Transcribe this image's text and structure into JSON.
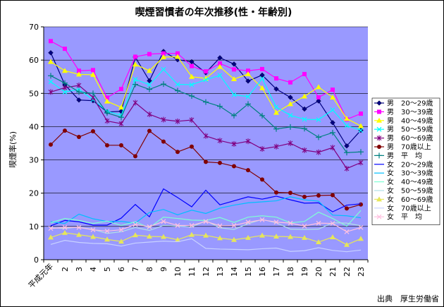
{
  "chart_data": {
    "type": "line",
    "title": "喫煙習慣者の年次推移(性・年齢別)",
    "ylabel": "喫煙率(%)",
    "xlabel": "",
    "source": "出典　厚生労働省",
    "ylim": [
      0,
      70
    ],
    "yticks": [
      0,
      10,
      20,
      30,
      40,
      50,
      60,
      70
    ],
    "categories": [
      "平成元年",
      "2",
      "3",
      "4",
      "5",
      "6",
      "7",
      "8",
      "9",
      "10",
      "11",
      "12",
      "13",
      "14",
      "15",
      "16",
      "17",
      "18",
      "19",
      "20",
      "21",
      "22",
      "23"
    ],
    "grid": "horizontal",
    "legend_position": "right",
    "series": [
      {
        "name": "男　20～29歳",
        "color": "#000080",
        "marker": "diamond",
        "dash": "",
        "values": [
          62.2,
          52.6,
          48.0,
          47.8,
          44.4,
          44.6,
          60.9,
          53.8,
          62.6,
          60.1,
          59.5,
          56.2,
          60.7,
          58.8,
          53.7,
          55.5,
          51.3,
          48.8,
          45.3,
          47.7,
          41.2,
          34.2,
          38.9
        ]
      },
      {
        "name": "男　30～39歳",
        "color": "#ff00ff",
        "marker": "square",
        "dash": "",
        "values": [
          65.7,
          63.4,
          56.8,
          57.0,
          48.7,
          51.3,
          61.0,
          61.8,
          62.0,
          62.0,
          58.2,
          56.6,
          59.0,
          57.2,
          56.8,
          57.3,
          54.5,
          53.3,
          55.8,
          48.8,
          51.1,
          42.2,
          43.9
        ]
      },
      {
        "name": "男　40～49歳",
        "color": "#ffff00",
        "marker": "triangle",
        "dash": "",
        "values": [
          59.5,
          56.8,
          55.7,
          55.6,
          47.6,
          45.8,
          58.7,
          56.8,
          60.9,
          61.0,
          55.0,
          54.5,
          58.0,
          54.3,
          55.8,
          51.6,
          44.2,
          46.8,
          49.1,
          51.9,
          48.8,
          42.4,
          40.2
        ]
      },
      {
        "name": "男　50～59歳",
        "color": "#00ffff",
        "marker": "x",
        "dash": "",
        "values": [
          53.5,
          50.4,
          51.2,
          48.1,
          44.6,
          43.4,
          54.2,
          52.6,
          57.2,
          52.7,
          52.6,
          54.1,
          55.4,
          49.6,
          49.0,
          54.4,
          45.9,
          43.4,
          42.2,
          42.1,
          45.0,
          40.3,
          38.9
        ]
      },
      {
        "name": "男　60～69歳",
        "color": "#800080",
        "marker": "star",
        "dash": "",
        "values": [
          50.4,
          51.7,
          52.4,
          48.8,
          41.7,
          40.9,
          47.2,
          43.7,
          42.1,
          41.6,
          42.0,
          37.2,
          35.8,
          34.8,
          35.6,
          33.3,
          34.0,
          35.0,
          32.9,
          32.3,
          33.7,
          27.4,
          29.2
        ]
      },
      {
        "name": "男　70歳以上",
        "color": "#800000",
        "marker": "circle",
        "dash": "",
        "values": [
          34.6,
          38.8,
          36.9,
          38.6,
          34.4,
          34.4,
          31.1,
          38.7,
          35.5,
          32.4,
          34.0,
          29.4,
          29.1,
          28.1,
          26.9,
          24.1,
          20.2,
          20.1,
          18.9,
          19.3,
          19.4,
          15.4,
          16.6
        ]
      },
      {
        "name": "男　平　均",
        "color": "#008080",
        "marker": "plus",
        "dash": "",
        "values": [
          55.3,
          53.1,
          50.4,
          50.0,
          44.1,
          42.8,
          52.7,
          51.2,
          52.8,
          50.8,
          49.2,
          47.4,
          46.1,
          43.3,
          46.8,
          43.3,
          39.3,
          39.9,
          39.4,
          36.8,
          38.2,
          32.2,
          32.4
        ]
      },
      {
        "name": "女　20～29歳",
        "color": "#0000ff",
        "marker": "none",
        "dash": "",
        "values": [
          10.2,
          11.8,
          11.4,
          10.4,
          10.4,
          12.5,
          16.6,
          12.9,
          21.3,
          18.7,
          15.9,
          20.9,
          16.5,
          17.7,
          18.9,
          18.2,
          19.1,
          18.0,
          17.0,
          17.1,
          14.4,
          16.4,
          16.8
        ]
      },
      {
        "name": "女　30～39歳",
        "color": "#00bfff",
        "marker": "none",
        "dash": "",
        "values": [
          11.4,
          10.9,
          13.7,
          12.3,
          11.5,
          11.5,
          11.0,
          14.2,
          15.1,
          13.5,
          14.9,
          13.9,
          15.5,
          16.4,
          17.1,
          17.4,
          17.7,
          18.9,
          18.0,
          17.6,
          13.4,
          13.2,
          12.6
        ]
      },
      {
        "name": "女　40～49歳",
        "color": "#7fffd4",
        "marker": "none",
        "dash": "",
        "values": [
          11.1,
          12.4,
          11.8,
          10.9,
          11.6,
          10.3,
          11.4,
          9.6,
          12.8,
          12.4,
          11.9,
          11.8,
          12.7,
          11.2,
          12.8,
          13.2,
          12.8,
          11.1,
          11.5,
          14.3,
          12.4,
          10.1,
          14.8
        ]
      },
      {
        "name": "女　50～59歳",
        "color": "#b0e0e6",
        "marker": "none",
        "dash": "",
        "values": [
          9.6,
          9.4,
          9.8,
          9.1,
          7.9,
          8.4,
          9.7,
          8.8,
          10.3,
          10.1,
          9.8,
          11.7,
          9.6,
          9.1,
          10.8,
          12.1,
          11.1,
          9.2,
          9.1,
          9.2,
          11.1,
          11.0,
          10.2
        ]
      },
      {
        "name": "女　60～69歳",
        "color": "#e6e65a",
        "marker": "triangle",
        "dash": "",
        "values": [
          6.7,
          8.1,
          7.5,
          6.9,
          6.1,
          5.5,
          7.4,
          7.0,
          6.9,
          6.0,
          7.5,
          7.3,
          6.5,
          6.0,
          6.6,
          7.3,
          7.0,
          6.9,
          6.6,
          5.3,
          6.8,
          4.5,
          6.3
        ]
      },
      {
        "name": "女　70歳以上",
        "color": "#c8d2ff",
        "marker": "none",
        "dash": "",
        "values": [
          4.6,
          5.8,
          5.2,
          4.9,
          4.8,
          4.1,
          5.0,
          5.3,
          5.6,
          5.4,
          6.3,
          3.4,
          3.2,
          3.1,
          3.0,
          3.3,
          3.5,
          2.5,
          2.7,
          3.6,
          2.8,
          2.4,
          2.9
        ]
      },
      {
        "name": "女　平　均",
        "color": "#ffc0e0",
        "marker": "x",
        "dash": "",
        "values": [
          9.4,
          9.7,
          9.7,
          9.0,
          8.6,
          9.0,
          10.6,
          9.9,
          11.5,
          10.3,
          10.3,
          11.5,
          10.2,
          10.3,
          11.3,
          12.0,
          11.3,
          11.0,
          10.1,
          11.0,
          10.9,
          8.4,
          9.7
        ]
      }
    ]
  }
}
